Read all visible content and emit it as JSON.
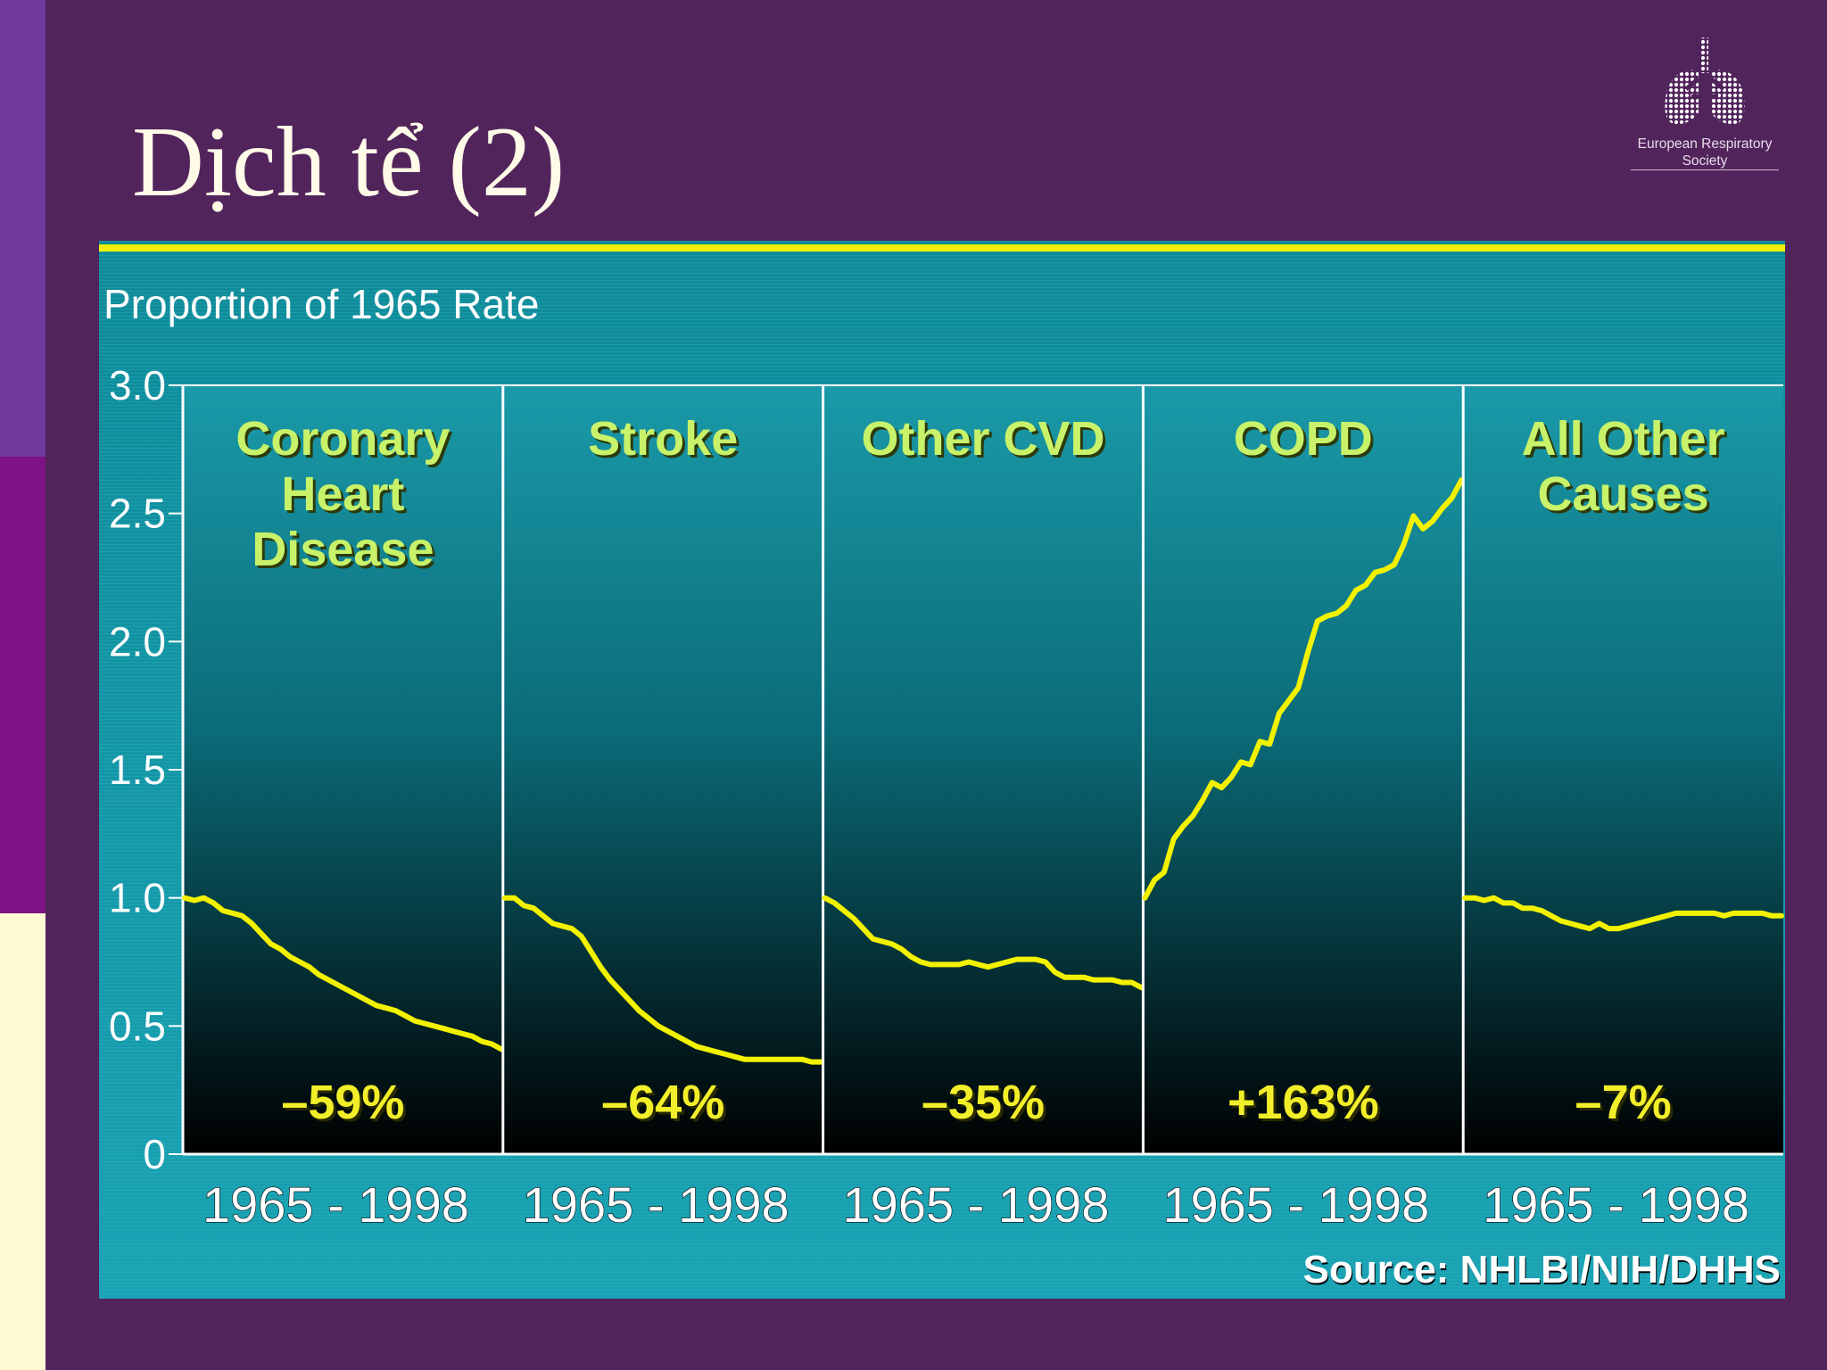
{
  "slide": {
    "title": "Dịch tể (2)",
    "logo": {
      "text_line1": "European Respiratory",
      "text_line2": "Society"
    }
  },
  "colors": {
    "background": "#52245c",
    "chart_background_top": "#1a9aa9",
    "chart_background_bottom": "#000000",
    "line": "#f2f200",
    "panel_title": "#c8f26a",
    "percent_label": "#f2ef2a"
  },
  "chart_data": {
    "type": "line",
    "title": "",
    "ylabel": "Proportion of 1965 Rate",
    "xlabel": "",
    "ylim": [
      0,
      3.0
    ],
    "yticks": [
      "3.0",
      "2.5",
      "2.0",
      "1.5",
      "1.0",
      "0.5",
      "0"
    ],
    "x_range": [
      1965,
      1998
    ],
    "source": "Source:  NHLBI/NIH/DHHS",
    "panels": [
      {
        "name": "Coronary Heart Disease",
        "title_lines": [
          "Coronary",
          "Heart",
          "Disease"
        ],
        "x_label": "1965 - 1998",
        "change_label": "–59%",
        "x": [
          1965,
          1966,
          1967,
          1968,
          1969,
          1970,
          1971,
          1972,
          1973,
          1974,
          1975,
          1976,
          1977,
          1978,
          1979,
          1980,
          1981,
          1982,
          1983,
          1984,
          1985,
          1986,
          1987,
          1988,
          1989,
          1990,
          1991,
          1992,
          1993,
          1994,
          1995,
          1996,
          1997,
          1998
        ],
        "values": [
          1.0,
          0.99,
          1.0,
          0.98,
          0.95,
          0.94,
          0.93,
          0.9,
          0.86,
          0.82,
          0.8,
          0.77,
          0.75,
          0.73,
          0.7,
          0.68,
          0.66,
          0.64,
          0.62,
          0.6,
          0.58,
          0.57,
          0.56,
          0.54,
          0.52,
          0.51,
          0.5,
          0.49,
          0.48,
          0.47,
          0.46,
          0.44,
          0.43,
          0.41
        ]
      },
      {
        "name": "Stroke",
        "title_lines": [
          "Stroke"
        ],
        "x_label": "1965 - 1998",
        "change_label": "–64%",
        "x": [
          1965,
          1966,
          1967,
          1968,
          1969,
          1970,
          1971,
          1972,
          1973,
          1974,
          1975,
          1976,
          1977,
          1978,
          1979,
          1980,
          1981,
          1982,
          1983,
          1984,
          1985,
          1986,
          1987,
          1988,
          1989,
          1990,
          1991,
          1992,
          1993,
          1994,
          1995,
          1996,
          1997,
          1998
        ],
        "values": [
          1.0,
          1.0,
          0.97,
          0.96,
          0.93,
          0.9,
          0.89,
          0.88,
          0.85,
          0.79,
          0.73,
          0.68,
          0.64,
          0.6,
          0.56,
          0.53,
          0.5,
          0.48,
          0.46,
          0.44,
          0.42,
          0.41,
          0.4,
          0.39,
          0.38,
          0.37,
          0.37,
          0.37,
          0.37,
          0.37,
          0.37,
          0.37,
          0.36,
          0.36
        ]
      },
      {
        "name": "Other CVD",
        "title_lines": [
          "Other CVD"
        ],
        "x_label": "1965 - 1998",
        "change_label": "–35%",
        "x": [
          1965,
          1966,
          1967,
          1968,
          1969,
          1970,
          1971,
          1972,
          1973,
          1974,
          1975,
          1976,
          1977,
          1978,
          1979,
          1980,
          1981,
          1982,
          1983,
          1984,
          1985,
          1986,
          1987,
          1988,
          1989,
          1990,
          1991,
          1992,
          1993,
          1994,
          1995,
          1996,
          1997,
          1998
        ],
        "values": [
          1.0,
          0.98,
          0.95,
          0.92,
          0.88,
          0.84,
          0.83,
          0.82,
          0.8,
          0.77,
          0.75,
          0.74,
          0.74,
          0.74,
          0.74,
          0.75,
          0.74,
          0.73,
          0.74,
          0.75,
          0.76,
          0.76,
          0.76,
          0.75,
          0.71,
          0.69,
          0.69,
          0.69,
          0.68,
          0.68,
          0.68,
          0.67,
          0.67,
          0.65
        ]
      },
      {
        "name": "COPD",
        "title_lines": [
          "COPD"
        ],
        "x_label": "1965 - 1998",
        "change_label": "+163%",
        "x": [
          1965,
          1966,
          1967,
          1968,
          1969,
          1970,
          1971,
          1972,
          1973,
          1974,
          1975,
          1976,
          1977,
          1978,
          1979,
          1980,
          1981,
          1982,
          1983,
          1984,
          1985,
          1986,
          1987,
          1988,
          1989,
          1990,
          1991,
          1992,
          1993,
          1994,
          1995,
          1996,
          1997,
          1998
        ],
        "values": [
          1.0,
          1.07,
          1.1,
          1.23,
          1.28,
          1.32,
          1.38,
          1.45,
          1.43,
          1.47,
          1.53,
          1.52,
          1.61,
          1.6,
          1.72,
          1.77,
          1.82,
          1.96,
          2.08,
          2.1,
          2.11,
          2.14,
          2.2,
          2.22,
          2.27,
          2.28,
          2.3,
          2.38,
          2.49,
          2.44,
          2.47,
          2.52,
          2.56,
          2.63
        ]
      },
      {
        "name": "All Other Causes",
        "title_lines": [
          "All Other",
          "Causes"
        ],
        "x_label": "1965 - 1998",
        "change_label": "–7%",
        "x": [
          1965,
          1966,
          1967,
          1968,
          1969,
          1970,
          1971,
          1972,
          1973,
          1974,
          1975,
          1976,
          1977,
          1978,
          1979,
          1980,
          1981,
          1982,
          1983,
          1984,
          1985,
          1986,
          1987,
          1988,
          1989,
          1990,
          1991,
          1992,
          1993,
          1994,
          1995,
          1996,
          1997,
          1998
        ],
        "values": [
          1.0,
          1.0,
          0.99,
          1.0,
          0.98,
          0.98,
          0.96,
          0.96,
          0.95,
          0.93,
          0.91,
          0.9,
          0.89,
          0.88,
          0.9,
          0.88,
          0.88,
          0.89,
          0.9,
          0.91,
          0.92,
          0.93,
          0.94,
          0.94,
          0.94,
          0.94,
          0.94,
          0.93,
          0.94,
          0.94,
          0.94,
          0.94,
          0.93,
          0.93
        ]
      }
    ]
  }
}
